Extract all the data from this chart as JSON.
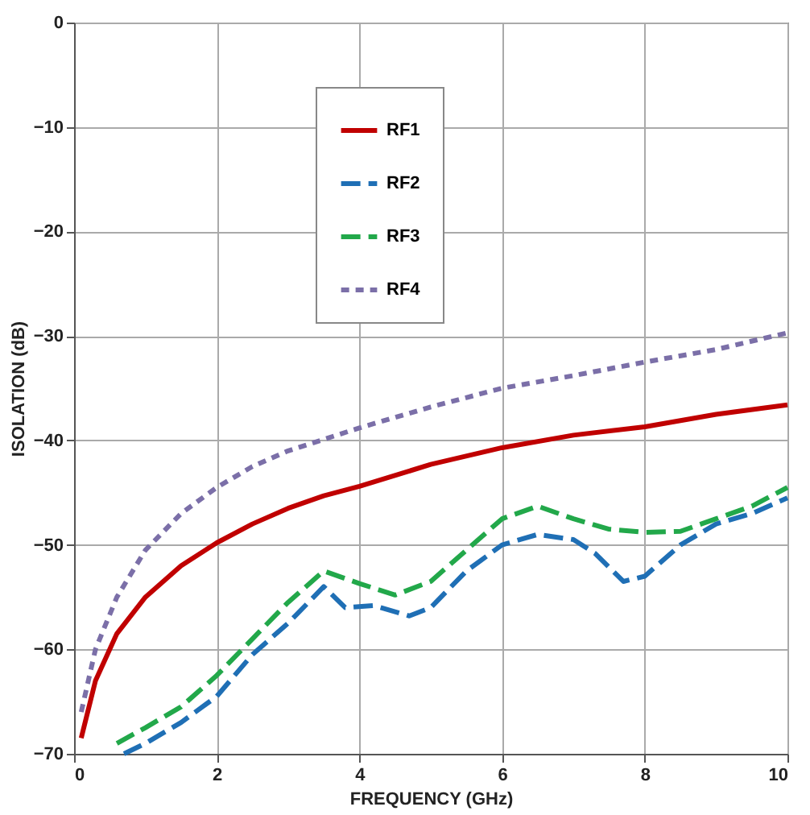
{
  "chart_data": {
    "type": "line",
    "xlabel": "FREQUENCY (GHz)",
    "ylabel": "ISOLATION (dB)",
    "xlim": [
      0,
      10
    ],
    "xticks": [
      0,
      2,
      4,
      6,
      8,
      10
    ],
    "ylim": [
      -70,
      0
    ],
    "yticks": [
      -70,
      -60,
      -50,
      -40,
      -30,
      -20,
      -10,
      0
    ],
    "grid": true,
    "legend": "top",
    "series": [
      {
        "name": "RF1",
        "color": "#c00000",
        "line_style": "solid",
        "x": [
          0.1,
          0.3,
          0.6,
          1,
          1.5,
          2,
          2.5,
          3,
          3.5,
          4,
          5,
          6,
          7,
          8,
          9,
          10
        ],
        "values": [
          -68.5,
          -63,
          -58.5,
          -55,
          -52,
          -49.8,
          -48,
          -46.5,
          -45.3,
          -44.4,
          -42.3,
          -40.7,
          -39.5,
          -38.7,
          -37.5,
          -36.6
        ]
      },
      {
        "name": "RF2",
        "color": "#1f6fb5",
        "line_style": "dashed",
        "x": [
          0.7,
          1,
          1.5,
          2,
          2.5,
          3,
          3.5,
          3.8,
          4.2,
          4.7,
          5,
          5.5,
          6,
          6.5,
          7,
          7.3,
          7.7,
          8,
          8.5,
          9,
          9.5,
          10
        ],
        "values": [
          -70,
          -69,
          -67,
          -64.5,
          -60.5,
          -57.5,
          -54,
          -56,
          -55.8,
          -56.8,
          -56,
          -52.5,
          -50,
          -49,
          -49.5,
          -50.8,
          -53.5,
          -53,
          -50,
          -48,
          -47,
          -45.5
        ]
      },
      {
        "name": "RF3",
        "color": "#22a84a",
        "line_style": "dashed",
        "x": [
          0.6,
          1,
          1.5,
          2,
          2.5,
          3,
          3.5,
          4,
          4.5,
          5,
          5.5,
          6,
          6.5,
          7,
          7.5,
          8,
          8.5,
          9,
          9.5,
          10
        ],
        "values": [
          -69,
          -67.5,
          -65.5,
          -62.5,
          -59,
          -55.5,
          -52.5,
          -53.7,
          -54.8,
          -53.5,
          -50.5,
          -47.5,
          -46.3,
          -47.5,
          -48.5,
          -48.8,
          -48.7,
          -47.5,
          -46.3,
          -44.5
        ]
      },
      {
        "name": "RF4",
        "color": "#7b6fa8",
        "line_style": "dotted",
        "x": [
          0.1,
          0.3,
          0.6,
          1,
          1.5,
          2,
          2.5,
          3,
          4,
          5,
          6,
          7,
          8,
          9,
          10
        ],
        "values": [
          -66,
          -60,
          -55,
          -50.5,
          -47,
          -44.5,
          -42.5,
          -41,
          -38.8,
          -36.8,
          -35,
          -33.8,
          -32.5,
          -31.3,
          -29.7
        ]
      }
    ]
  }
}
